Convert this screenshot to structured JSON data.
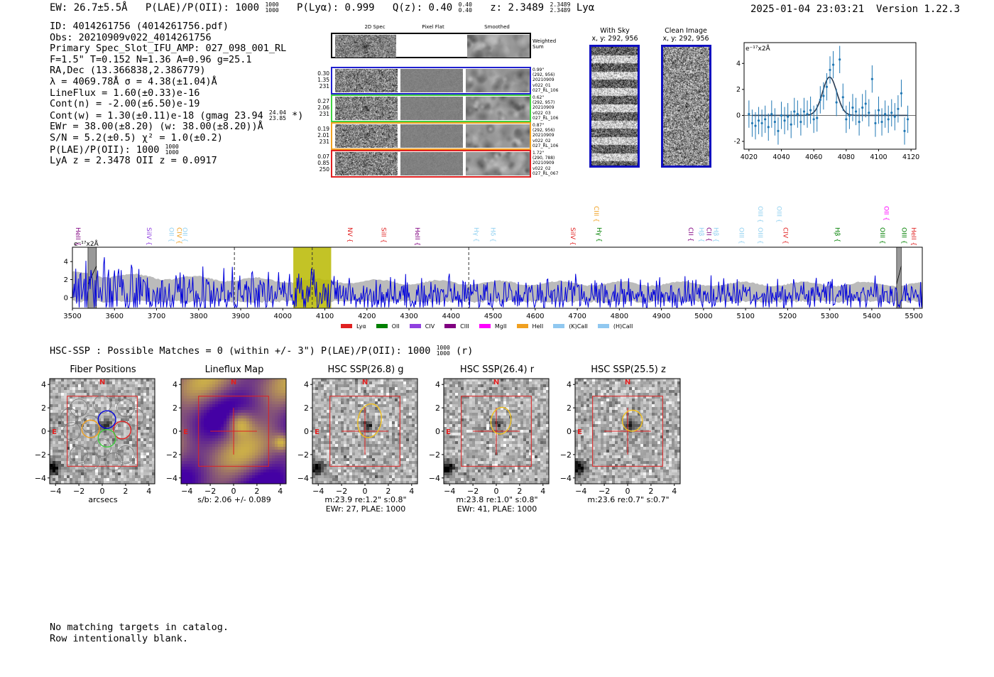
{
  "header": {
    "ew": "EW: 26.7±5.5Å",
    "plae": "P(LAE)/P(OII): 1000",
    "plae_sup": "1000",
    "plae_sub": "1000",
    "plya": "P(Lyα): 0.999",
    "qz": "Q(z): 0.40",
    "qz_sup": "0.40",
    "qz_sub": "0.40",
    "z": "z: 2.3489",
    "z_sup": "2.3489",
    "z_sub": "2.3489",
    "line": "Lyα",
    "datetime": "2025-01-04 23:03:21",
    "version": "Version 1.22.3"
  },
  "info": {
    "id": "ID: 4014261756 (4014261756.pdf)",
    "obs": "Obs: 20210909v022_4014261756",
    "primary": "Primary Spec_Slot_IFU_AMP: 027_098_001_RL",
    "params": "F=1.5\"  T=0.152  N=1.36  A=0.96  g=25.1",
    "radec": "RA,Dec (13.366838,2.386779)",
    "lambda": "λ = 4069.78Å   σ = 4.38(±1.04)Å",
    "lineflux": "LineFlux = 1.60(±0.33)e-16",
    "contn": "Cont(n) = -2.00(±6.50)e-19",
    "contw": "Cont(w) = 1.30(±0.11)e-18 (gmag 23.94",
    "contw_sup": "24.04",
    "contw_sub": "23.85",
    "contw_end": " *)",
    "ewr": "EWr = 38.00(±8.20) (w: 38.00(±8.20))Å",
    "sn": "S/N = 5.2(±0.5)   χ² = 1.0(±0.2)",
    "plae": "P(LAE)/P(OII): 1000",
    "plae_sup": "1000",
    "plae_sub": "1000",
    "lya_z": "LyA z = 2.3478   OII z = 0.0917"
  },
  "cutouts": {
    "col_2d": "2D Spec",
    "col_flat": "Pixel Flat",
    "col_smooth": "Smoothed",
    "weighted": "Weighted\nSum",
    "rows": [
      {
        "left": [
          "0.30",
          "1.35",
          "231"
        ],
        "right": [
          "0.99\"",
          "(292, 956)",
          "20210909",
          "v022_01",
          "027_RL_106"
        ],
        "color": "#2020d0"
      },
      {
        "left": [
          "0.27",
          "2.06",
          "231"
        ],
        "right": [
          "0.62\"",
          "(292, 957)",
          "20210909",
          "v022_03",
          "027_RL_106"
        ],
        "color": "#40d040"
      },
      {
        "left": [
          "0.19",
          "2.01",
          "231"
        ],
        "right": [
          "0.87\"",
          "(292, 956)",
          "20210909",
          "v022_02",
          "027_RL_106"
        ],
        "color": "#f0a020"
      },
      {
        "left": [
          "0.07",
          "0.85",
          "250"
        ],
        "right": [
          "1.72\"",
          "(290, 788)",
          "20210909",
          "v022_02",
          "027_RL_067"
        ],
        "color": "#e02020"
      }
    ]
  },
  "sky": {
    "with_sky_title": "With Sky",
    "with_sky_xy": "x, y: 292, 956",
    "clean_title": "Clean Image",
    "clean_xy": "x, y: 292, 956"
  },
  "zoom_chart": {
    "ylabel": "e⁻¹⁷x2Å"
  },
  "full_spectrum": {
    "ylabel": "e⁻¹⁷x2Å",
    "line_labels": [
      {
        "name": "HeII",
        "wave": 3503,
        "color": "#800080",
        "row": 1
      },
      {
        "name": "SiIV",
        "wave": 3672,
        "color": "#9040e0",
        "row": 1
      },
      {
        "name": "OII",
        "wave": 3725,
        "color": "#90d0f0",
        "row": 1
      },
      {
        "name": "CIV",
        "wave": 3744,
        "color": "#f0a020",
        "row": 1
      },
      {
        "name": "OII",
        "wave": 3757,
        "color": "#90d0f0",
        "row": 1
      },
      {
        "name": "NV",
        "wave": 4150,
        "color": "#e02020",
        "row": 1
      },
      {
        "name": "SiII",
        "wave": 4230,
        "color": "#e02020",
        "row": 1
      },
      {
        "name": "HeII",
        "wave": 4310,
        "color": "#800080",
        "row": 1
      },
      {
        "name": "Hγ",
        "wave": 4450,
        "color": "#90d0f0",
        "row": 1
      },
      {
        "name": "Hδ",
        "wave": 4490,
        "color": "#90d0f0",
        "row": 1
      },
      {
        "name": "SiIV",
        "wave": 4680,
        "color": "#e02020",
        "row": 1
      },
      {
        "name": "CIII",
        "wave": 4735,
        "color": "#f0a020",
        "row": 0
      },
      {
        "name": "Hγ",
        "wave": 4742,
        "color": "#008000",
        "row": 1
      },
      {
        "name": "CII",
        "wave": 4960,
        "color": "#800080",
        "row": 1
      },
      {
        "name": "Hβ",
        "wave": 4985,
        "color": "#90d0f0",
        "row": 1
      },
      {
        "name": "CII",
        "wave": 5003,
        "color": "#800080",
        "row": 1
      },
      {
        "name": "Hβ",
        "wave": 5020,
        "color": "#90d0f0",
        "row": 1
      },
      {
        "name": "OIII",
        "wave": 5080,
        "color": "#90d0f0",
        "row": 1
      },
      {
        "name": "OIII",
        "wave": 5125,
        "color": "#90d0f0",
        "row": 0
      },
      {
        "name": "OIII",
        "wave": 5125,
        "color": "#90d0f0",
        "row": 1
      },
      {
        "name": "OIII",
        "wave": 5170,
        "color": "#90d0f0",
        "row": 0
      },
      {
        "name": "CIV",
        "wave": 5185,
        "color": "#e02020",
        "row": 1
      },
      {
        "name": "Hβ",
        "wave": 5308,
        "color": "#008000",
        "row": 1
      },
      {
        "name": "OIII",
        "wave": 5415,
        "color": "#008000",
        "row": 1
      },
      {
        "name": "OII",
        "wave": 5425,
        "color": "#ff00ff",
        "row": 0
      },
      {
        "name": "OIII",
        "wave": 5467,
        "color": "#008000",
        "row": 1
      },
      {
        "name": "HeII",
        "wave": 5490,
        "color": "#e02020",
        "row": 1
      }
    ],
    "legend": [
      {
        "label": "Lyα",
        "color": "#e02020"
      },
      {
        "label": "OII",
        "color": "#008000"
      },
      {
        "label": "CIV",
        "color": "#9040e0"
      },
      {
        "label": "CIII",
        "color": "#800080"
      },
      {
        "label": "MgII",
        "color": "#ff00ff"
      },
      {
        "label": "HeII",
        "color": "#f0a020"
      },
      {
        "label": "(K)CaII",
        "color": "#90c8f0"
      },
      {
        "label": "(H)CaII",
        "color": "#90c8f0"
      }
    ]
  },
  "hsc": {
    "summary": "HSC-SSP : Possible Matches = 0 (within +/- 3\")  P(LAE)/P(OII): 1000",
    "summary_sup": "1000",
    "summary_sub": "1000",
    "summary_end": " (r)",
    "panels": [
      {
        "title": "Fiber Positions",
        "cap1": "arcsecs",
        "cap2": ""
      },
      {
        "title": "Lineflux Map",
        "cap1": "s/b: 2.06 +/- 0.089",
        "cap2": ""
      },
      {
        "title": "HSC SSP(26.8) g",
        "cap1": "m:23.9  re:1.2\"  s:0.8\"",
        "cap2": "EWr: 27, PLAE: 1000"
      },
      {
        "title": "HSC SSP(26.4) r",
        "cap1": "m:23.8  re:1.0\"  s:0.8\"",
        "cap2": "EWr: 41, PLAE: 1000"
      },
      {
        "title": "HSC SSP(25.5) z",
        "cap1": "m:23.6  re:0.7\"  s:0.7\"",
        "cap2": ""
      }
    ],
    "compass_n": "N",
    "compass_e": "E"
  },
  "footer": {
    "line1": "No matching targets in catalog.",
    "line2": "Row intentionally blank."
  },
  "chart_data": [
    {
      "type": "scatter",
      "title": "",
      "xlabel": "",
      "ylabel": "e⁻¹⁷x2Å",
      "xlim": [
        4017,
        4123
      ],
      "ylim": [
        -2.6,
        5.6
      ],
      "xticks": [
        4020,
        4040,
        4060,
        4080,
        4100,
        4120
      ],
      "yticks": [
        -2,
        0,
        2,
        4
      ],
      "x": [
        4020,
        4022,
        4024,
        4026,
        4028,
        4030,
        4032,
        4034,
        4036,
        4038,
        4040,
        4042,
        4044,
        4046,
        4048,
        4050,
        4052,
        4054,
        4056,
        4058,
        4060,
        4062,
        4064,
        4066,
        4068,
        4070,
        4072,
        4074,
        4076,
        4078,
        4080,
        4082,
        4084,
        4086,
        4088,
        4090,
        4092,
        4094,
        4096,
        4098,
        4100,
        4102,
        4104,
        4106,
        4108,
        4110,
        4112,
        4114,
        4116,
        4118
      ],
      "y": [
        0.1,
        -0.6,
        -0.8,
        -0.4,
        -0.6,
        -0.3,
        -0.9,
        0.1,
        -0.5,
        -1.2,
        0.0,
        -0.4,
        -0.1,
        -0.7,
        0.3,
        0.1,
        -0.5,
        0.3,
        0.1,
        0.4,
        -0.3,
        -0.2,
        1.2,
        1.5,
        2.2,
        3.5,
        3.9,
        1.0,
        4.3,
        1.4,
        -0.3,
        0.0,
        0.6,
        0.3,
        -0.5,
        0.6,
        0.9,
        0.2,
        2.8,
        -0.6,
        0.4,
        -0.5,
        0.1,
        -0.3,
        0.2,
        -0.1,
        0.5,
        1.7,
        -1.2,
        -0.3
      ],
      "yerr": 1.05,
      "series": [
        {
          "name": "gaussian fit",
          "center": 4069.8,
          "sigma": 4.38,
          "amplitude": 2.95
        }
      ]
    },
    {
      "type": "line",
      "title": "",
      "xlabel": "",
      "ylabel": "e⁻¹⁷x2Å",
      "xlim": [
        3500,
        5520
      ],
      "ylim": [
        -1.2,
        5.6
      ],
      "xticks": [
        3500,
        3600,
        3700,
        3800,
        3900,
        4000,
        4100,
        4200,
        4300,
        4400,
        4500,
        4600,
        4700,
        4800,
        4900,
        5000,
        5100,
        5200,
        5300,
        5400,
        5500
      ],
      "yticks": [
        0,
        2,
        4
      ],
      "highlight_band": [
        4025,
        4115
      ],
      "dashed_lines": [
        3885,
        4070,
        4442
      ],
      "masked_regions": [
        [
          3537,
          3557
        ],
        [
          5459,
          5470
        ]
      ],
      "series": [
        {
          "name": "flux",
          "color": "#0000dd"
        },
        {
          "name": "error envelope",
          "color": "#bbbbbb"
        }
      ]
    }
  ]
}
